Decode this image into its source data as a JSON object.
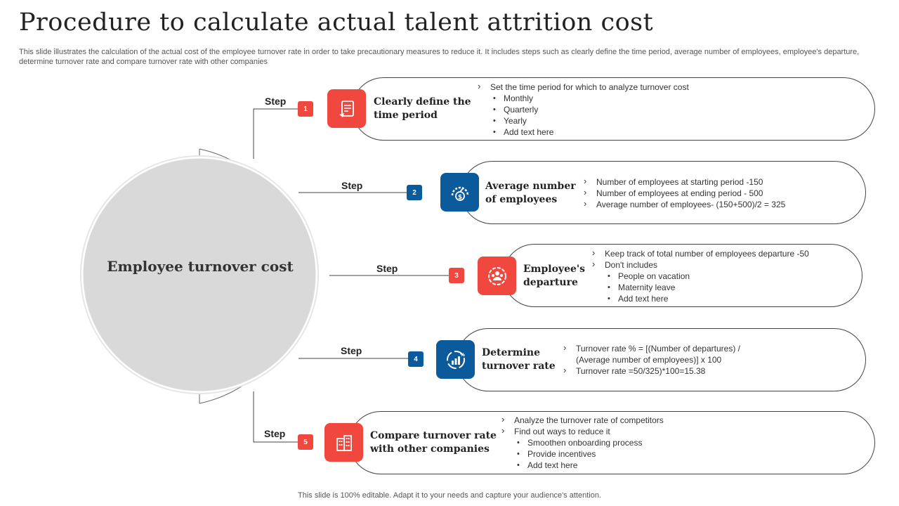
{
  "title": "Procedure to calculate actual talent attrition cost",
  "subtitle": "This slide illustrates the calculation of the actual cost of the employee turnover rate in order to take precautionary measures to reduce it. It includes steps such as clearly define the time period, average number of employees, employee's departure, determine turnover rate and compare turnover rate with other companies",
  "center_label": "Employee turnover cost",
  "step_word": "Step",
  "steps": [
    {
      "number": "1",
      "heading": "Clearly define the time period",
      "icon": "document-icon",
      "bullets": [
        {
          "text": "Set the time period for which to analyze turnover cost",
          "sub": [
            "Monthly",
            "Quarterly",
            "Yearly",
            "Add text here"
          ]
        }
      ]
    },
    {
      "number": "2",
      "heading": "Average number of employees",
      "icon": "dollar-gauge-icon",
      "bullets": [
        {
          "text": "Number of employees at starting period -150",
          "sub": []
        },
        {
          "text": "Number of employees at ending period - 500",
          "sub": []
        },
        {
          "text": "Average number of employees- (150+500)/2 = 325",
          "sub": []
        }
      ]
    },
    {
      "number": "3",
      "heading": "Employee's departure",
      "icon": "people-circle-icon",
      "bullets": [
        {
          "text": "Keep track of total number of employees departure -50",
          "sub": []
        },
        {
          "text": "Don't includes",
          "sub": [
            "People on vacation",
            "Maternity leave",
            "Add text here"
          ]
        }
      ]
    },
    {
      "number": "4",
      "heading": "Determine turnover rate",
      "icon": "bar-chart-percent-icon",
      "bullets": [
        {
          "text": "Turnover rate % = [(Number of departures) / (Average number of employees)] x 100",
          "sub": []
        },
        {
          "text": "Turnover rate =50/325)*100=15.38",
          "sub": []
        }
      ]
    },
    {
      "number": "5",
      "heading": "Compare turnover rate with other companies",
      "icon": "buildings-icon",
      "bullets": [
        {
          "text": "Analyze the turnover rate of competitors",
          "sub": []
        },
        {
          "text": "Find out ways to reduce it",
          "sub": [
            "Smoothen onboarding process",
            "Provide incentives",
            "Add text here"
          ]
        }
      ]
    }
  ],
  "footer": "This slide is 100% editable. Adapt it to your needs and capture your audience's attention.",
  "colors": {
    "red": "#f0483e",
    "blue": "#0a5a9c",
    "circle_fill": "#d9d9d9"
  }
}
